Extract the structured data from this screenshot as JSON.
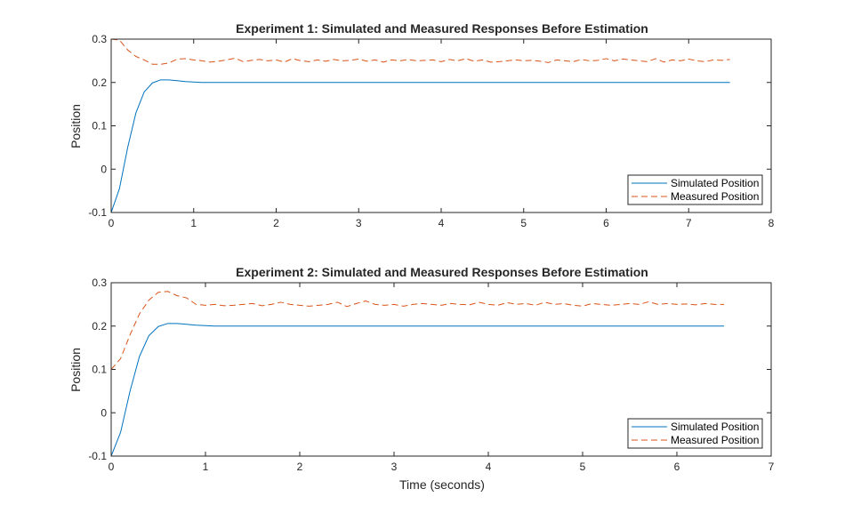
{
  "colors": {
    "simulated": "#0072BD",
    "measured": "#D95319",
    "axis": "#262626",
    "background": "#ffffff"
  },
  "chart_data": [
    {
      "type": "line",
      "title": "Experiment 1: Simulated and Measured Responses Before Estimation",
      "xlabel": "",
      "ylabel": "Position",
      "xlim": [
        0,
        8
      ],
      "ylim": [
        -0.1,
        0.3
      ],
      "xticks": [
        0,
        1,
        2,
        3,
        4,
        5,
        6,
        7,
        8
      ],
      "yticks": [
        -0.1,
        0,
        0.1,
        0.2,
        0.3
      ],
      "xtick_labels": [
        "0",
        "1",
        "2",
        "3",
        "4",
        "5",
        "6",
        "7",
        "8"
      ],
      "ytick_labels": [
        "-0.1",
        "0",
        "0.1",
        "0.2",
        "0.3"
      ],
      "grid": false,
      "legend": "bottom-right",
      "series": [
        {
          "name": "Simulated Position",
          "style": "solid",
          "x": [
            0,
            0.1,
            0.2,
            0.3,
            0.4,
            0.5,
            0.6,
            0.7,
            0.8,
            0.9,
            1.0,
            1.1,
            1.2,
            1.3,
            1.5,
            2.0,
            3.0,
            4.0,
            5.0,
            6.0,
            7.0,
            7.5
          ],
          "y": [
            -0.1,
            -0.045,
            0.05,
            0.13,
            0.178,
            0.199,
            0.206,
            0.206,
            0.204,
            0.202,
            0.201,
            0.2,
            0.2,
            0.2,
            0.2,
            0.2,
            0.2,
            0.2,
            0.2,
            0.2,
            0.2,
            0.2
          ]
        },
        {
          "name": "Measured Position",
          "style": "dashed",
          "x": [
            0,
            0.1,
            0.2,
            0.3,
            0.4,
            0.5,
            0.6,
            0.7,
            0.8,
            0.9,
            1.0,
            1.1,
            1.2,
            1.3,
            1.4,
            1.5,
            1.6,
            1.7,
            1.8,
            1.9,
            2.0,
            2.1,
            2.2,
            2.3,
            2.4,
            2.5,
            2.6,
            2.7,
            2.8,
            2.9,
            3.0,
            3.1,
            3.2,
            3.3,
            3.4,
            3.5,
            3.6,
            3.7,
            3.8,
            3.9,
            4.0,
            4.1,
            4.2,
            4.3,
            4.4,
            4.5,
            4.6,
            4.7,
            4.8,
            4.9,
            5.0,
            5.1,
            5.2,
            5.3,
            5.4,
            5.5,
            5.6,
            5.7,
            5.8,
            5.9,
            6.0,
            6.1,
            6.2,
            6.3,
            6.4,
            6.5,
            6.6,
            6.7,
            6.8,
            6.9,
            7.0,
            7.1,
            7.2,
            7.3,
            7.4,
            7.5
          ],
          "y": [
            0.3,
            0.298,
            0.275,
            0.26,
            0.252,
            0.242,
            0.242,
            0.245,
            0.254,
            0.255,
            0.252,
            0.25,
            0.247,
            0.249,
            0.252,
            0.256,
            0.248,
            0.251,
            0.253,
            0.25,
            0.252,
            0.247,
            0.255,
            0.25,
            0.248,
            0.252,
            0.249,
            0.253,
            0.25,
            0.251,
            0.254,
            0.249,
            0.252,
            0.247,
            0.252,
            0.25,
            0.253,
            0.25,
            0.251,
            0.252,
            0.248,
            0.253,
            0.25,
            0.255,
            0.249,
            0.252,
            0.247,
            0.248,
            0.25,
            0.252,
            0.25,
            0.251,
            0.249,
            0.246,
            0.252,
            0.25,
            0.248,
            0.253,
            0.25,
            0.251,
            0.255,
            0.25,
            0.254,
            0.252,
            0.25,
            0.248,
            0.255,
            0.247,
            0.252,
            0.25,
            0.254,
            0.25,
            0.248,
            0.252,
            0.251,
            0.253
          ]
        }
      ]
    },
    {
      "type": "line",
      "title": "Experiment 2: Simulated and Measured Responses Before Estimation",
      "xlabel": "Time (seconds)",
      "ylabel": "Position",
      "xlim": [
        0,
        7
      ],
      "ylim": [
        -0.1,
        0.3
      ],
      "xticks": [
        0,
        1,
        2,
        3,
        4,
        5,
        6,
        7
      ],
      "yticks": [
        -0.1,
        0,
        0.1,
        0.2,
        0.3
      ],
      "xtick_labels": [
        "0",
        "1",
        "2",
        "3",
        "4",
        "5",
        "6",
        "7"
      ],
      "ytick_labels": [
        "-0.1",
        "0",
        "0.1",
        "0.2",
        "0.3"
      ],
      "grid": false,
      "legend": "bottom-right",
      "series": [
        {
          "name": "Simulated Position",
          "style": "solid",
          "x": [
            0,
            0.1,
            0.2,
            0.3,
            0.4,
            0.5,
            0.6,
            0.7,
            0.8,
            0.9,
            1.0,
            1.1,
            1.2,
            1.3,
            1.5,
            2.0,
            3.0,
            4.0,
            5.0,
            6.0,
            6.5
          ],
          "y": [
            -0.1,
            -0.045,
            0.05,
            0.13,
            0.178,
            0.199,
            0.206,
            0.206,
            0.204,
            0.202,
            0.201,
            0.2,
            0.2,
            0.2,
            0.2,
            0.2,
            0.2,
            0.2,
            0.2,
            0.2,
            0.2
          ]
        },
        {
          "name": "Measured Position",
          "style": "dashed",
          "x": [
            0,
            0.1,
            0.2,
            0.3,
            0.4,
            0.5,
            0.6,
            0.7,
            0.8,
            0.9,
            1.0,
            1.1,
            1.2,
            1.3,
            1.4,
            1.5,
            1.6,
            1.7,
            1.8,
            1.9,
            2.0,
            2.1,
            2.2,
            2.3,
            2.4,
            2.5,
            2.6,
            2.7,
            2.8,
            2.9,
            3.0,
            3.1,
            3.2,
            3.3,
            3.4,
            3.5,
            3.6,
            3.7,
            3.8,
            3.9,
            4.0,
            4.1,
            4.2,
            4.3,
            4.4,
            4.5,
            4.6,
            4.7,
            4.8,
            4.9,
            5.0,
            5.1,
            5.2,
            5.3,
            5.4,
            5.5,
            5.6,
            5.7,
            5.8,
            5.9,
            6.0,
            6.1,
            6.2,
            6.3,
            6.4,
            6.5
          ],
          "y": [
            0.1,
            0.125,
            0.18,
            0.228,
            0.26,
            0.278,
            0.28,
            0.27,
            0.265,
            0.25,
            0.248,
            0.25,
            0.247,
            0.248,
            0.25,
            0.252,
            0.247,
            0.25,
            0.255,
            0.25,
            0.248,
            0.246,
            0.248,
            0.25,
            0.255,
            0.245,
            0.252,
            0.258,
            0.25,
            0.248,
            0.25,
            0.246,
            0.25,
            0.252,
            0.25,
            0.248,
            0.252,
            0.25,
            0.249,
            0.255,
            0.25,
            0.248,
            0.254,
            0.25,
            0.252,
            0.248,
            0.255,
            0.25,
            0.252,
            0.248,
            0.246,
            0.252,
            0.25,
            0.248,
            0.25,
            0.252,
            0.25,
            0.256,
            0.25,
            0.252,
            0.25,
            0.251,
            0.249,
            0.252,
            0.25,
            0.25
          ]
        }
      ]
    }
  ]
}
